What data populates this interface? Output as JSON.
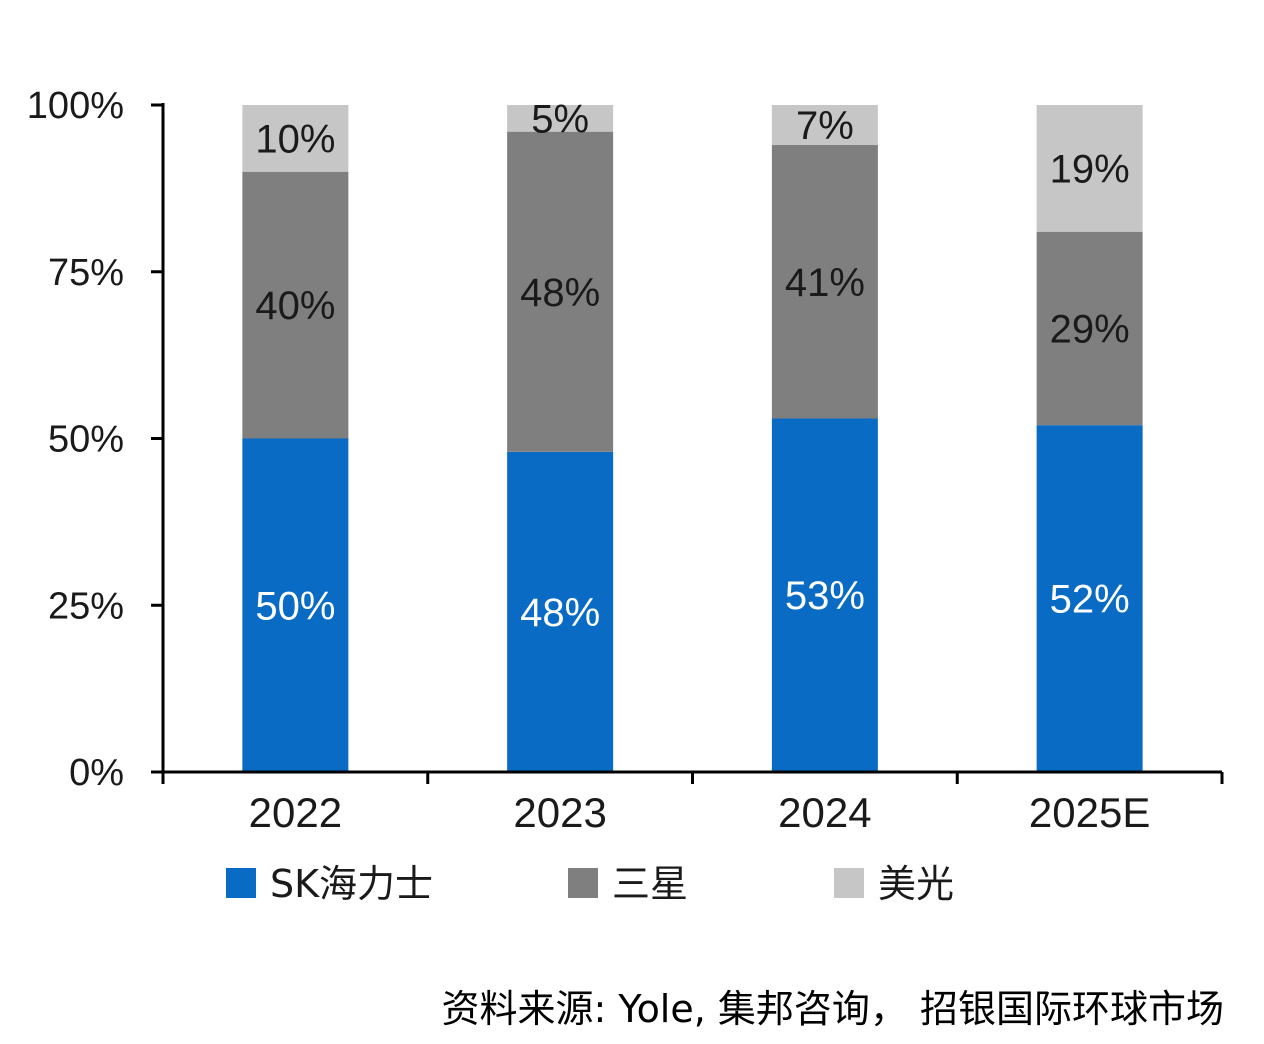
{
  "chart_data": {
    "type": "bar",
    "stacked": true,
    "categories": [
      "2022",
      "2023",
      "2024",
      "2025E"
    ],
    "series": [
      {
        "name": "SK海力士",
        "color": "#0a6bc5",
        "label_color": "#ffffff",
        "values": [
          50,
          48,
          53,
          52
        ],
        "labels": [
          "50%",
          "48%",
          "53%",
          "52%"
        ]
      },
      {
        "name": "三星",
        "color": "#7f7f7f",
        "label_color": "#1a1a1a",
        "values": [
          40,
          48,
          41,
          29
        ],
        "labels": [
          "40%",
          "48%",
          "41%",
          "29%"
        ]
      },
      {
        "name": "美光",
        "color": "#c6c6c6",
        "label_color": "#1a1a1a",
        "values": [
          10,
          5,
          7,
          19
        ],
        "labels": [
          "10%",
          "5%",
          "7%",
          "19%"
        ]
      }
    ],
    "ylim": [
      0,
      100
    ],
    "yticks": [
      0,
      25,
      50,
      75,
      100
    ],
    "ytick_labels": [
      "0%",
      "25%",
      "50%",
      "75%",
      "100%"
    ],
    "title": "",
    "xlabel": "",
    "ylabel": "",
    "grid": false,
    "legend_position": "bottom"
  },
  "source": "资料来源: Yole, 集邦咨询， 招银国际环球市场"
}
